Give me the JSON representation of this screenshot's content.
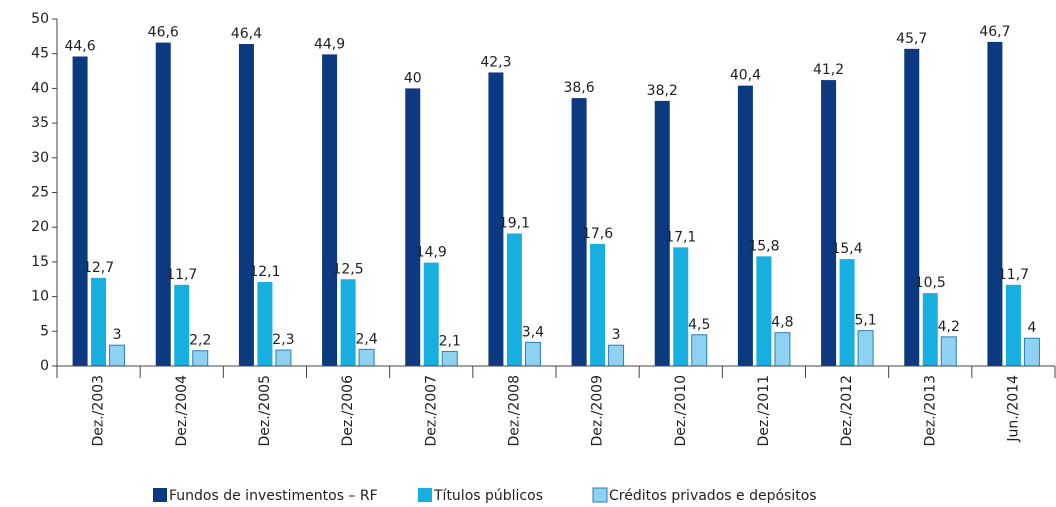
{
  "chart_data": {
    "type": "bar",
    "categories": [
      "Dez./2003",
      "Dez./2004",
      "Dez./2005",
      "Dez./2006",
      "Dez./2007",
      "Dez./2008",
      "Dez./2009",
      "Dez./2010",
      "Dez./2011",
      "Dez./2012",
      "Dez./2013",
      "Jun./2014"
    ],
    "series": [
      {
        "name": "Fundos de investimentos – RF",
        "color": "#0b3a80",
        "values": [
          44.6,
          46.6,
          46.4,
          44.9,
          40,
          42.3,
          38.6,
          38.2,
          40.4,
          41.2,
          45.7,
          46.7
        ],
        "value_labels": [
          "44,6",
          "46,6",
          "46,4",
          "44,9",
          "40",
          "42,3",
          "38,6",
          "38,2",
          "40,4",
          "41,2",
          "45,7",
          "46,7"
        ]
      },
      {
        "name": "Títulos públicos",
        "color": "#16afe0",
        "values": [
          12.7,
          11.7,
          12.1,
          12.5,
          14.9,
          19.1,
          17.6,
          17.1,
          15.8,
          15.4,
          10.5,
          11.7
        ],
        "value_labels": [
          "12,7",
          "11,7",
          "12,1",
          "12,5",
          "14,9",
          "19,1",
          "17,6",
          "17,1",
          "15,8",
          "15,4",
          "10,5",
          "11,7"
        ]
      },
      {
        "name": "Créditos privados e depósitos",
        "color": "#8ed1f0",
        "values": [
          3,
          2.2,
          2.3,
          2.4,
          2.1,
          3.4,
          3,
          4.5,
          4.8,
          5.1,
          4.2,
          4
        ],
        "value_labels": [
          "3",
          "2,2",
          "2,3",
          "2,4",
          "2,1",
          "3,4",
          "3",
          "4,5",
          "4,8",
          "5,1",
          "4,2",
          "4"
        ]
      }
    ],
    "ylim": [
      0,
      50
    ],
    "yticks": [
      0,
      5,
      10,
      15,
      20,
      25,
      30,
      35,
      40,
      45,
      50
    ],
    "legend": "bottom"
  }
}
